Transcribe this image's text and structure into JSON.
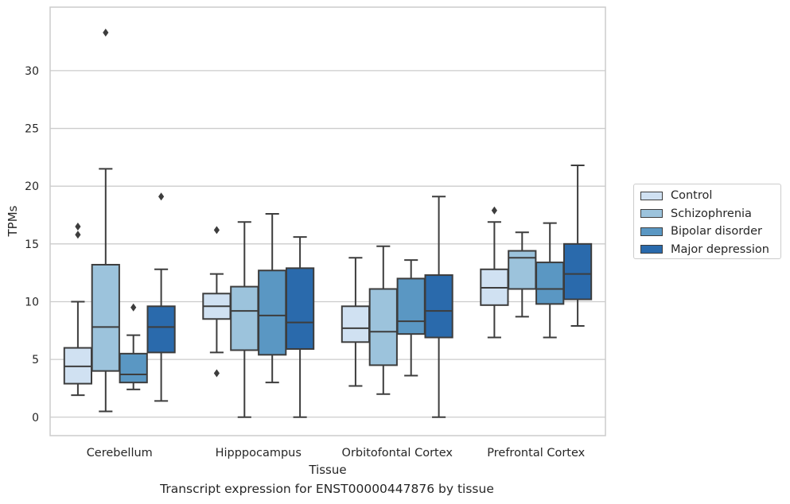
{
  "chart_data": {
    "type": "box",
    "categories": [
      "Cerebellum",
      "Hipppocampus",
      "Orbitofontal Cortex",
      "Prefrontal Cortex"
    ],
    "xlabel": "Tissue",
    "ylabel": "TPMs",
    "ylim": [
      -1.6,
      35.5
    ],
    "yticks": [
      0,
      5,
      10,
      15,
      20,
      25,
      30
    ],
    "grid": "horizontal",
    "legend_position": "outside-right",
    "series": [
      {
        "name": "Control",
        "color": "#d0e1f2",
        "boxes": [
          {
            "min": 1.9,
            "q1": 2.9,
            "median": 4.4,
            "q3": 6.0,
            "max": 10.0,
            "outliers": [
              15.8,
              16.5
            ]
          },
          {
            "min": 5.6,
            "q1": 8.5,
            "median": 9.6,
            "q3": 10.7,
            "max": 12.4,
            "outliers": [
              3.8,
              16.2
            ]
          },
          {
            "min": 2.7,
            "q1": 6.5,
            "median": 7.7,
            "q3": 9.6,
            "max": 13.8,
            "outliers": []
          },
          {
            "min": 6.9,
            "q1": 9.7,
            "median": 11.2,
            "q3": 12.8,
            "max": 16.9,
            "outliers": [
              17.9
            ]
          }
        ]
      },
      {
        "name": "Schizophrenia",
        "color": "#9cc3dc",
        "boxes": [
          {
            "min": 0.5,
            "q1": 4.0,
            "median": 7.8,
            "q3": 13.2,
            "max": 21.5,
            "outliers": [
              33.3
            ]
          },
          {
            "min": 0.0,
            "q1": 5.8,
            "median": 9.2,
            "q3": 11.3,
            "max": 16.9,
            "outliers": []
          },
          {
            "min": 2.0,
            "q1": 4.5,
            "median": 7.4,
            "q3": 11.1,
            "max": 14.8,
            "outliers": []
          },
          {
            "min": 8.7,
            "q1": 11.1,
            "median": 13.8,
            "q3": 14.4,
            "max": 16.0,
            "outliers": []
          }
        ]
      },
      {
        "name": "Bipolar disorder",
        "color": "#5a97c3",
        "boxes": [
          {
            "min": 2.4,
            "q1": 3.0,
            "median": 3.7,
            "q3": 5.5,
            "max": 7.1,
            "outliers": [
              9.5
            ]
          },
          {
            "min": 3.0,
            "q1": 5.4,
            "median": 8.8,
            "q3": 12.7,
            "max": 17.6,
            "outliers": []
          },
          {
            "min": 3.6,
            "q1": 7.2,
            "median": 8.3,
            "q3": 12.0,
            "max": 13.6,
            "outliers": []
          },
          {
            "min": 6.9,
            "q1": 9.8,
            "median": 11.1,
            "q3": 13.4,
            "max": 16.8,
            "outliers": []
          }
        ]
      },
      {
        "name": "Major depression",
        "color": "#2a6aac",
        "boxes": [
          {
            "min": 1.4,
            "q1": 5.6,
            "median": 7.8,
            "q3": 9.6,
            "max": 12.8,
            "outliers": [
              19.1
            ]
          },
          {
            "min": 0.0,
            "q1": 5.9,
            "median": 8.2,
            "q3": 12.9,
            "max": 15.6,
            "outliers": []
          },
          {
            "min": 0.0,
            "q1": 6.9,
            "median": 9.2,
            "q3": 12.3,
            "max": 19.1,
            "outliers": []
          },
          {
            "min": 7.9,
            "q1": 10.2,
            "median": 12.4,
            "q3": 15.0,
            "max": 21.8,
            "outliers": []
          }
        ]
      }
    ]
  },
  "caption": "Transcript expression for ENST00000447876 by tissue"
}
